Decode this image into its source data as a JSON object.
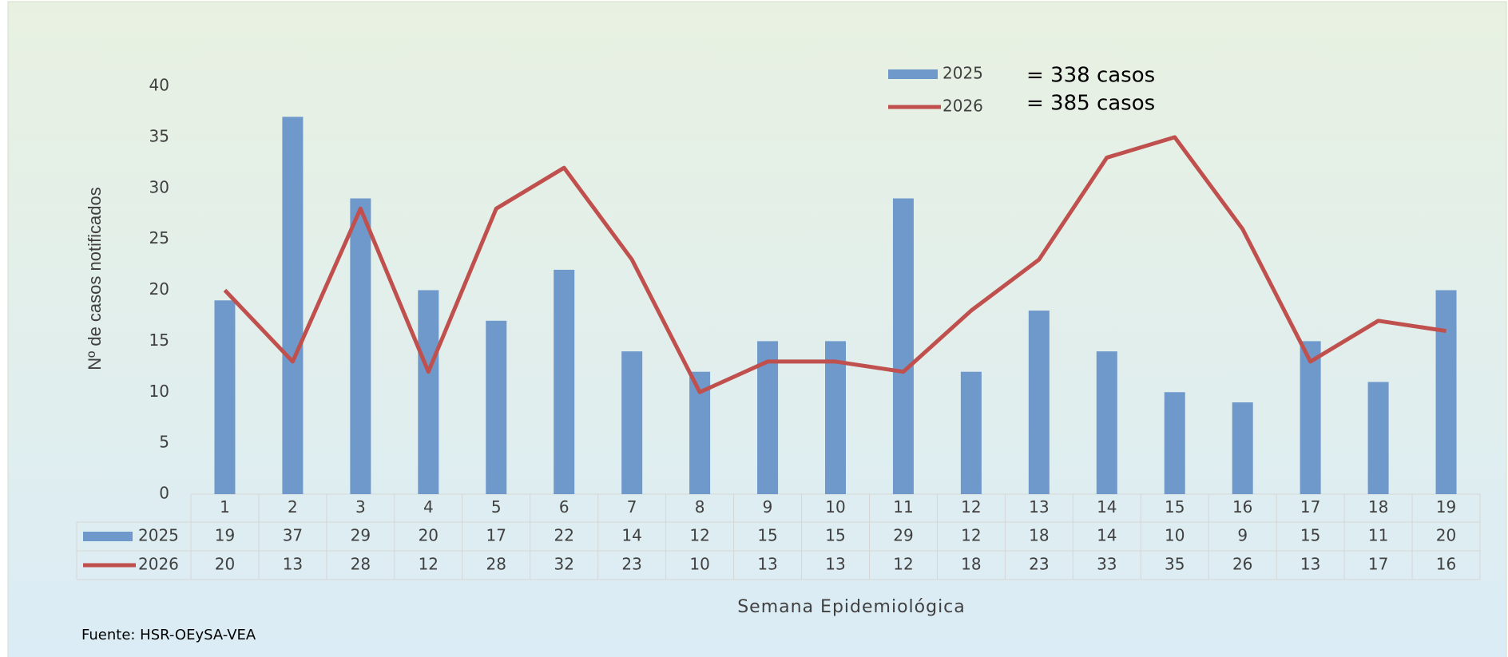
{
  "chart_data": {
    "type": "bar-line",
    "y_label": "Nº de casos notificados",
    "x_label": "Semana Epidemiológica",
    "source": "Fuente: HSR-OEySA-VEA",
    "annotations": [
      "= 338 casos",
      "= 385 casos"
    ],
    "categories": [
      "1",
      "2",
      "3",
      "4",
      "5",
      "6",
      "7",
      "8",
      "9",
      "10",
      "11",
      "12",
      "13",
      "14",
      "15",
      "16",
      "17",
      "18",
      "19"
    ],
    "series": [
      {
        "name": "2025",
        "type": "bar",
        "color": "#7099cb",
        "values": [
          19,
          37,
          29,
          20,
          17,
          22,
          14,
          12,
          15,
          15,
          29,
          12,
          18,
          14,
          10,
          9,
          15,
          11,
          20
        ]
      },
      {
        "name": "2026",
        "type": "line",
        "color": "#c0504d",
        "values": [
          20,
          13,
          28,
          12,
          28,
          32,
          23,
          10,
          13,
          13,
          12,
          18,
          23,
          33,
          35,
          26,
          13,
          17,
          16
        ]
      }
    ],
    "ylim": [
      0,
      40
    ],
    "yticks": [
      0,
      5,
      10,
      15,
      20,
      25,
      30,
      35,
      40
    ],
    "grid": false,
    "legend": "top-right",
    "data_table": true
  }
}
